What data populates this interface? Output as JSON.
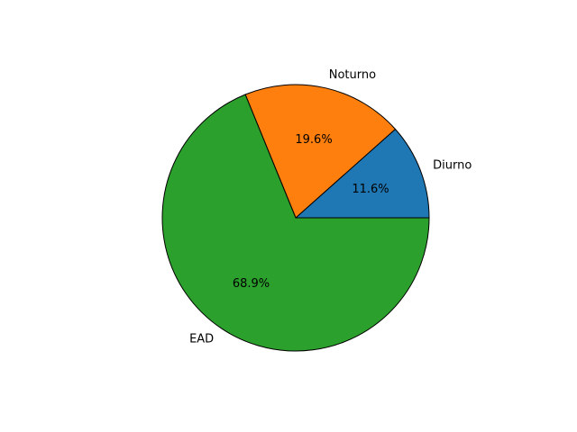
{
  "chart_data": {
    "type": "pie",
    "title": "",
    "start_angle_deg": 0,
    "direction": "counterclockwise",
    "slices": [
      {
        "label": "Diurno",
        "value": 11.6,
        "pct_label": "11.6%",
        "color": "#1f77b4"
      },
      {
        "label": "Noturno",
        "value": 19.6,
        "pct_label": "19.6%",
        "color": "#ff7f0e"
      },
      {
        "label": "EAD",
        "value": 68.9,
        "pct_label": "68.9%",
        "color": "#2ca02c"
      }
    ],
    "edge_color": "#000000"
  }
}
